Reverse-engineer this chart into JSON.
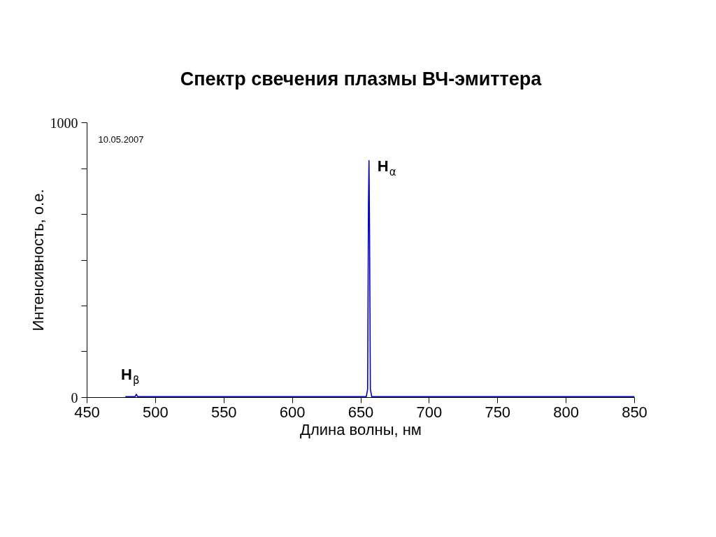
{
  "chart_data": {
    "type": "line",
    "title": "Спектр свечения плазмы ВЧ-эмиттера",
    "xlabel": "Длина волны, нм",
    "ylabel": "Интенсивность, о.е.",
    "x": [
      478,
      485,
      486,
      487,
      550,
      600,
      654,
      655,
      655.6,
      656,
      656.4,
      657,
      658,
      750,
      850
    ],
    "series": [
      {
        "color": "#0000cc",
        "values": [
          3,
          3,
          12,
          3,
          3,
          3,
          3,
          30,
          700,
          862,
          600,
          30,
          3,
          3,
          3
        ]
      }
    ],
    "xlim": [
      450,
      850
    ],
    "ylim": [
      0,
      1000
    ],
    "xticks": [
      450,
      500,
      550,
      600,
      650,
      700,
      750,
      800,
      850
    ],
    "yticks": [
      0,
      {
        "value": 166.7,
        "label": null
      },
      {
        "value": 333.3,
        "label": null
      },
      {
        "value": 500,
        "label": null
      },
      {
        "value": 666.7,
        "label": null
      },
      {
        "value": 833.3,
        "label": null
      },
      1000
    ],
    "grid": false,
    "marker": "none",
    "line_style": "solid",
    "annotations": [
      "10.05.2007",
      {
        "text": "H$_{α}$",
        "x": 656,
        "y": 862
      },
      {
        "text": "H$_{β}$",
        "x": 486,
        "y": 12
      }
    ]
  }
}
